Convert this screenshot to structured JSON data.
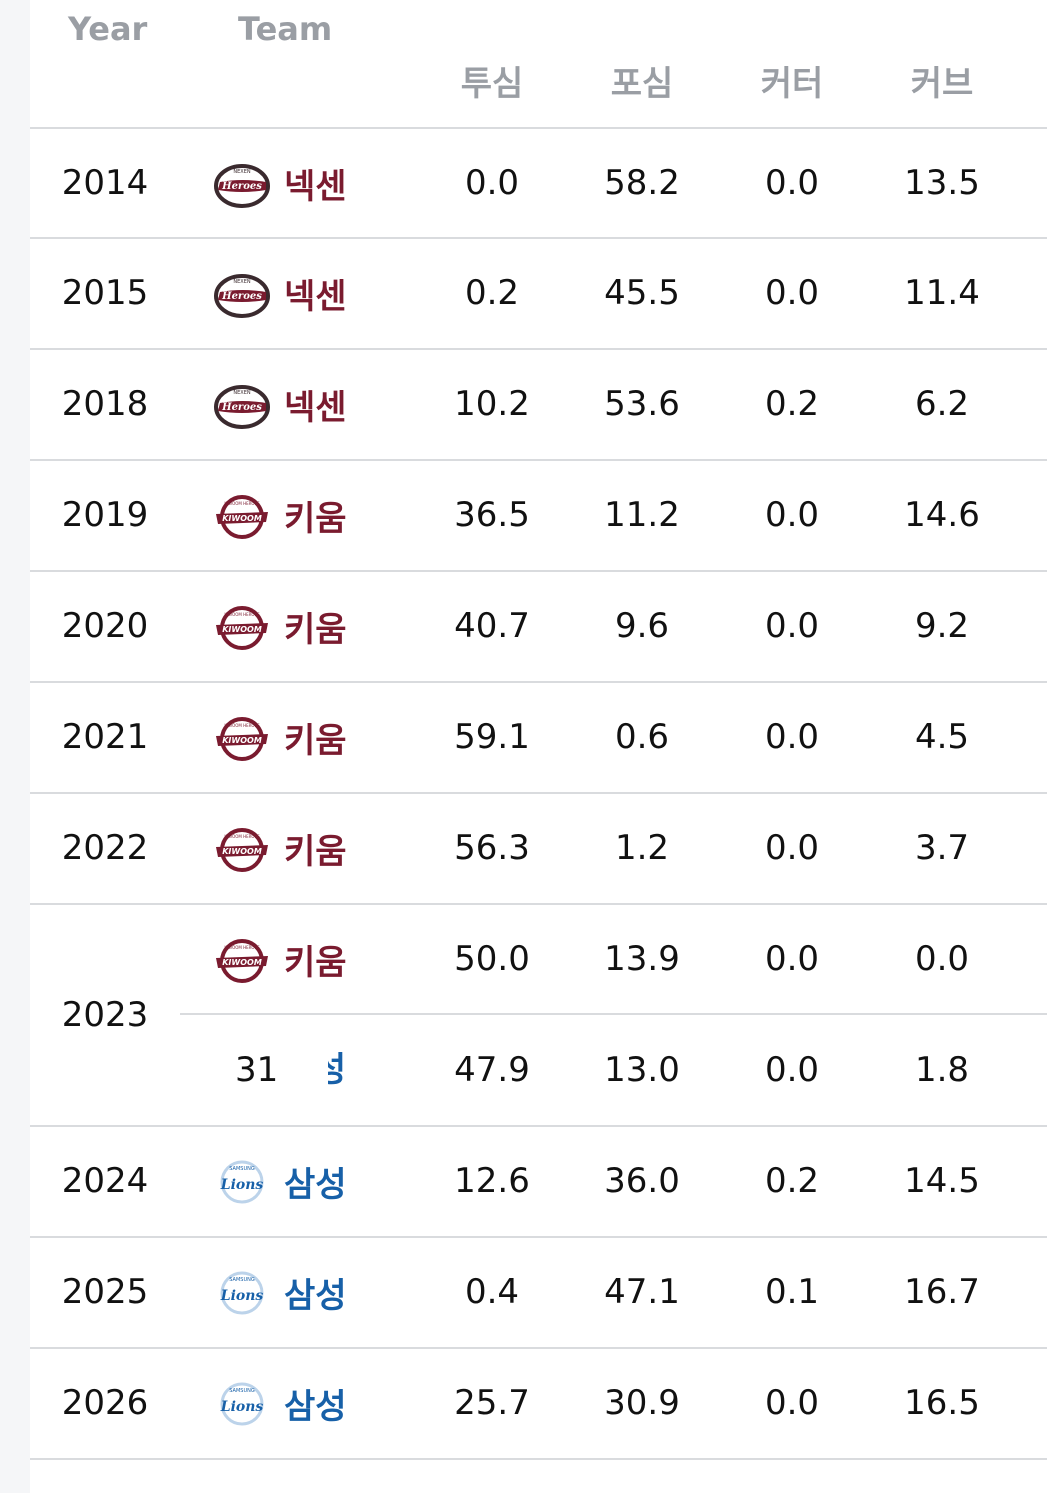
{
  "header": {
    "year": "Year",
    "team": "Team",
    "columns": [
      "투심",
      "포심",
      "커터",
      "커브"
    ]
  },
  "rows": [
    {
      "year": "2014",
      "team": "넥센",
      "logo": "heroes-logo",
      "values": [
        "0.0",
        "58.2",
        "0.0",
        "13.5"
      ]
    },
    {
      "year": "2015",
      "team": "넥센",
      "logo": "heroes-logo",
      "values": [
        "0.2",
        "45.5",
        "0.0",
        "11.4"
      ]
    },
    {
      "year": "2018",
      "team": "넥센",
      "logo": "heroes-logo",
      "values": [
        "10.2",
        "53.6",
        "0.2",
        "6.2"
      ]
    },
    {
      "year": "2019",
      "team": "키움",
      "logo": "kiwoom-logo",
      "values": [
        "36.5",
        "11.2",
        "0.0",
        "14.6"
      ]
    },
    {
      "year": "2020",
      "team": "키움",
      "logo": "kiwoom-logo",
      "values": [
        "40.7",
        "9.6",
        "0.0",
        "9.2"
      ]
    },
    {
      "year": "2021",
      "team": "키움",
      "logo": "kiwoom-logo",
      "values": [
        "59.1",
        "0.6",
        "0.0",
        "4.5"
      ]
    },
    {
      "year": "2022",
      "team": "키움",
      "logo": "kiwoom-logo",
      "values": [
        "56.3",
        "1.2",
        "0.0",
        "3.7"
      ]
    },
    {
      "year": "2023",
      "team": "키움",
      "logo": "kiwoom-logo",
      "values": [
        "50.0",
        "13.9",
        "0.0",
        "0.0"
      ],
      "second": {
        "label": "31",
        "team_partial": "성",
        "values": [
          "47.9",
          "13.0",
          "0.0",
          "1.8"
        ]
      }
    },
    {
      "year": "2024",
      "team": "삼성",
      "logo": "lions-logo",
      "values": [
        "12.6",
        "36.0",
        "0.2",
        "14.5"
      ]
    },
    {
      "year": "2025",
      "team": "삼성",
      "logo": "lions-logo",
      "values": [
        "0.4",
        "47.1",
        "0.1",
        "16.7"
      ]
    },
    {
      "year": "2026",
      "team": "삼성",
      "logo": "lions-logo",
      "values": [
        "25.7",
        "30.9",
        "0.0",
        "16.5"
      ]
    }
  ],
  "logos": {
    "heroes": {
      "text": "Heroes",
      "top_text": "NEXEN",
      "color": "#7a1b2f"
    },
    "kiwoom": {
      "text": "KIWOOM",
      "top_text": "KIWOOM HEROES",
      "color": "#7a1b2f"
    },
    "lions": {
      "text": "Lions",
      "top_text": "SAMSUNG",
      "color": "#1760a8"
    }
  }
}
